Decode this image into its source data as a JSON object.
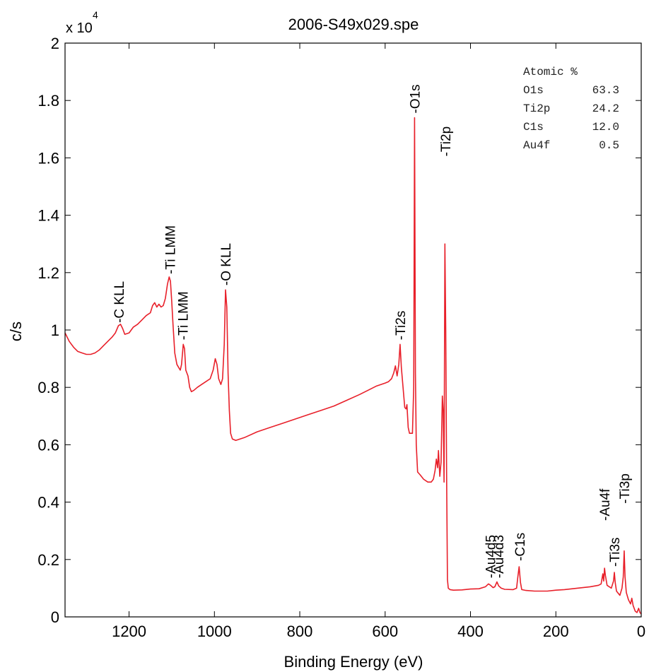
{
  "chart_data": {
    "type": "line",
    "title": "2006-S49x029.spe",
    "xlabel": "Binding Energy (eV)",
    "ylabel": "c/s",
    "y_exponent_label": "x 10",
    "y_exponent_power": "4",
    "x_reversed": true,
    "xlim": [
      1350,
      0
    ],
    "ylim": [
      0,
      2
    ],
    "x_ticks": [
      1200,
      1000,
      800,
      600,
      400,
      200,
      0
    ],
    "y_ticks": [
      0,
      0.2,
      0.4,
      0.6,
      0.8,
      1,
      1.2,
      1.4,
      1.6,
      1.8,
      2
    ],
    "grid": false,
    "line_color": "#e8202a",
    "series": [
      {
        "points": [
          [
            1350,
            0.99
          ],
          [
            1340,
            0.96
          ],
          [
            1330,
            0.94
          ],
          [
            1320,
            0.925
          ],
          [
            1310,
            0.92
          ],
          [
            1300,
            0.915
          ],
          [
            1290,
            0.915
          ],
          [
            1280,
            0.92
          ],
          [
            1270,
            0.93
          ],
          [
            1260,
            0.945
          ],
          [
            1250,
            0.96
          ],
          [
            1240,
            0.975
          ],
          [
            1232,
            0.99
          ],
          [
            1225,
            1.015
          ],
          [
            1220,
            1.02
          ],
          [
            1215,
            1.005
          ],
          [
            1210,
            0.985
          ],
          [
            1200,
            0.99
          ],
          [
            1190,
            1.01
          ],
          [
            1180,
            1.02
          ],
          [
            1170,
            1.035
          ],
          [
            1160,
            1.05
          ],
          [
            1150,
            1.06
          ],
          [
            1145,
            1.085
          ],
          [
            1140,
            1.095
          ],
          [
            1135,
            1.08
          ],
          [
            1130,
            1.09
          ],
          [
            1125,
            1.08
          ],
          [
            1120,
            1.085
          ],
          [
            1115,
            1.11
          ],
          [
            1110,
            1.16
          ],
          [
            1106,
            1.185
          ],
          [
            1103,
            1.17
          ],
          [
            1100,
            1.1
          ],
          [
            1097,
            1.02
          ],
          [
            1093,
            0.92
          ],
          [
            1088,
            0.88
          ],
          [
            1084,
            0.87
          ],
          [
            1080,
            0.86
          ],
          [
            1077,
            0.88
          ],
          [
            1073,
            0.95
          ],
          [
            1070,
            0.935
          ],
          [
            1067,
            0.86
          ],
          [
            1062,
            0.84
          ],
          [
            1058,
            0.8
          ],
          [
            1054,
            0.785
          ],
          [
            1048,
            0.79
          ],
          [
            1040,
            0.8
          ],
          [
            1030,
            0.81
          ],
          [
            1020,
            0.82
          ],
          [
            1010,
            0.83
          ],
          [
            1003,
            0.86
          ],
          [
            998,
            0.9
          ],
          [
            994,
            0.88
          ],
          [
            990,
            0.83
          ],
          [
            985,
            0.81
          ],
          [
            981,
            0.83
          ],
          [
            977,
            0.95
          ],
          [
            974,
            1.14
          ],
          [
            971,
            1.08
          ],
          [
            968,
            0.85
          ],
          [
            965,
            0.72
          ],
          [
            962,
            0.64
          ],
          [
            958,
            0.62
          ],
          [
            950,
            0.615
          ],
          [
            930,
            0.625
          ],
          [
            900,
            0.645
          ],
          [
            870,
            0.66
          ],
          [
            840,
            0.675
          ],
          [
            810,
            0.69
          ],
          [
            780,
            0.705
          ],
          [
            750,
            0.72
          ],
          [
            720,
            0.735
          ],
          [
            690,
            0.755
          ],
          [
            660,
            0.775
          ],
          [
            640,
            0.79
          ],
          [
            620,
            0.805
          ],
          [
            600,
            0.815
          ],
          [
            592,
            0.82
          ],
          [
            585,
            0.83
          ],
          [
            580,
            0.85
          ],
          [
            576,
            0.875
          ],
          [
            572,
            0.84
          ],
          [
            568,
            0.88
          ],
          [
            565,
            0.95
          ],
          [
            562,
            0.87
          ],
          [
            558,
            0.8
          ],
          [
            554,
            0.73
          ],
          [
            551,
            0.725
          ],
          [
            549,
            0.74
          ],
          [
            546,
            0.66
          ],
          [
            543,
            0.64
          ],
          [
            540,
            0.64
          ],
          [
            536,
            0.64
          ],
          [
            533,
            0.8
          ],
          [
            531,
            1.74
          ],
          [
            529,
            0.85
          ],
          [
            527,
            0.6
          ],
          [
            524,
            0.505
          ],
          [
            518,
            0.495
          ],
          [
            510,
            0.48
          ],
          [
            500,
            0.47
          ],
          [
            492,
            0.47
          ],
          [
            487,
            0.48
          ],
          [
            483,
            0.51
          ],
          [
            480,
            0.55
          ],
          [
            477,
            0.52
          ],
          [
            475,
            0.58
          ],
          [
            472,
            0.49
          ],
          [
            469,
            0.54
          ],
          [
            466,
            0.77
          ],
          [
            464,
            0.72
          ],
          [
            462,
            0.47
          ],
          [
            460,
            1.3
          ],
          [
            458,
            1.0
          ],
          [
            456,
            0.5
          ],
          [
            454,
            0.13
          ],
          [
            452,
            0.1
          ],
          [
            448,
            0.095
          ],
          [
            440,
            0.093
          ],
          [
            420,
            0.094
          ],
          [
            400,
            0.097
          ],
          [
            380,
            0.098
          ],
          [
            365,
            0.105
          ],
          [
            358,
            0.115
          ],
          [
            353,
            0.11
          ],
          [
            347,
            0.102
          ],
          [
            343,
            0.105
          ],
          [
            338,
            0.122
          ],
          [
            334,
            0.108
          ],
          [
            328,
            0.1
          ],
          [
            320,
            0.096
          ],
          [
            300,
            0.095
          ],
          [
            292,
            0.1
          ],
          [
            289,
            0.14
          ],
          [
            286,
            0.175
          ],
          [
            283,
            0.12
          ],
          [
            280,
            0.095
          ],
          [
            270,
            0.092
          ],
          [
            250,
            0.09
          ],
          [
            220,
            0.09
          ],
          [
            200,
            0.093
          ],
          [
            180,
            0.095
          ],
          [
            150,
            0.1
          ],
          [
            120,
            0.105
          ],
          [
            100,
            0.11
          ],
          [
            94,
            0.115
          ],
          [
            90,
            0.15
          ],
          [
            88,
            0.125
          ],
          [
            86,
            0.17
          ],
          [
            84,
            0.145
          ],
          [
            80,
            0.11
          ],
          [
            70,
            0.1
          ],
          [
            65,
            0.125
          ],
          [
            63,
            0.155
          ],
          [
            61,
            0.12
          ],
          [
            58,
            0.09
          ],
          [
            50,
            0.075
          ],
          [
            45,
            0.1
          ],
          [
            42,
            0.14
          ],
          [
            40,
            0.23
          ],
          [
            38,
            0.14
          ],
          [
            35,
            0.085
          ],
          [
            30,
            0.06
          ],
          [
            25,
            0.045
          ],
          [
            22,
            0.065
          ],
          [
            19,
            0.04
          ],
          [
            14,
            0.02
          ],
          [
            10,
            0.015
          ],
          [
            6,
            0.03
          ],
          [
            3,
            0.015
          ],
          [
            0,
            0.01
          ]
        ]
      }
    ],
    "annotations": [
      {
        "text": "-C KLL",
        "x": 1224,
        "y": 1.02
      },
      {
        "text": "-Ti LMM",
        "x": 1104,
        "y": 1.19
      },
      {
        "text": "-Ti LMM",
        "x": 1074,
        "y": 0.96
      },
      {
        "text": "-O KLL",
        "x": 974,
        "y": 1.15
      },
      {
        "text": "-Ti2s",
        "x": 565,
        "y": 0.96
      },
      {
        "text": "-O1s",
        "x": 531,
        "y": 1.75
      },
      {
        "text": "-Ti2p",
        "x": 459,
        "y": 1.6
      },
      {
        "text": "-Au4d3",
        "x": 335,
        "y": 0.13
      },
      {
        "text": "-Au4d5",
        "x": 354,
        "y": 0.13
      },
      {
        "text": "-C1s",
        "x": 285,
        "y": 0.19
      },
      {
        "text": "-Ti3s",
        "x": 63,
        "y": 0.17
      },
      {
        "text": "-Au4f",
        "x": 86,
        "y": 0.33
      },
      {
        "text": "-Ti3p",
        "x": 40,
        "y": 0.39
      }
    ],
    "legend_box": {
      "header": "Atomic %",
      "rows": [
        {
          "element": "O1s",
          "value": "63.3"
        },
        {
          "element": "Ti2p",
          "value": "24.2"
        },
        {
          "element": "C1s",
          "value": "12.0"
        },
        {
          "element": "Au4f",
          "value": "0.5"
        }
      ],
      "placement": "top-right"
    }
  }
}
